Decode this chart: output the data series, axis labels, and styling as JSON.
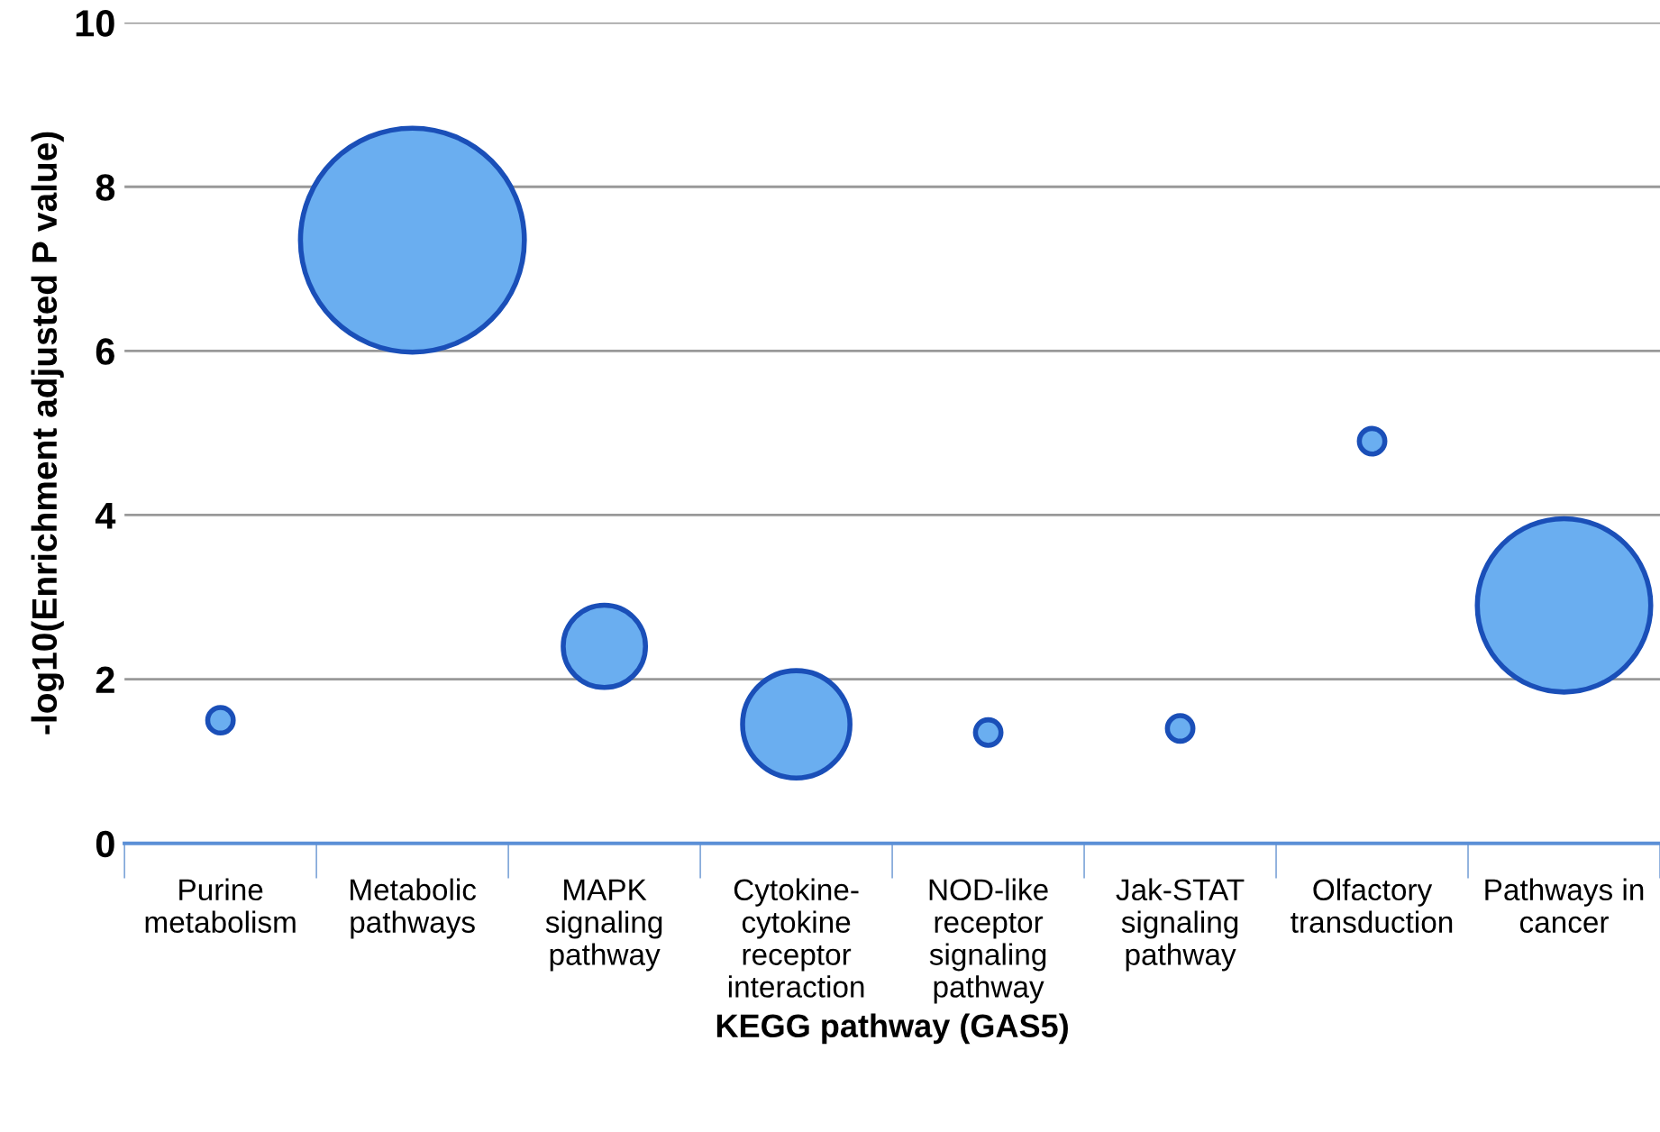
{
  "chart_data": {
    "type": "bubble",
    "xlabel": "KEGG pathway (GAS5)",
    "ylabel": "-log10(Enrichment adjusted P value)",
    "categories": [
      "Purine metabolism",
      "Metabolic pathways",
      "MAPK signaling pathway",
      "Cytokine-cytokine receptor interaction",
      "NOD-like receptor signaling pathway",
      "Jak-STAT signaling pathway",
      "Olfactory transduction",
      "Pathways in cancer"
    ],
    "series": [
      {
        "color": "#6aaef0",
        "values": [
          1.5,
          7.35,
          2.4,
          1.45,
          1.35,
          1.4,
          4.9,
          2.9
        ],
        "sizes": [
          0.013,
          1,
          0.135,
          0.23,
          0.013,
          0.013,
          0.013,
          0.6
        ]
      }
    ],
    "ylim": [
      0,
      10
    ],
    "yticks": [
      0,
      2,
      4,
      6,
      8,
      10
    ],
    "grid": "y",
    "legend": false
  }
}
